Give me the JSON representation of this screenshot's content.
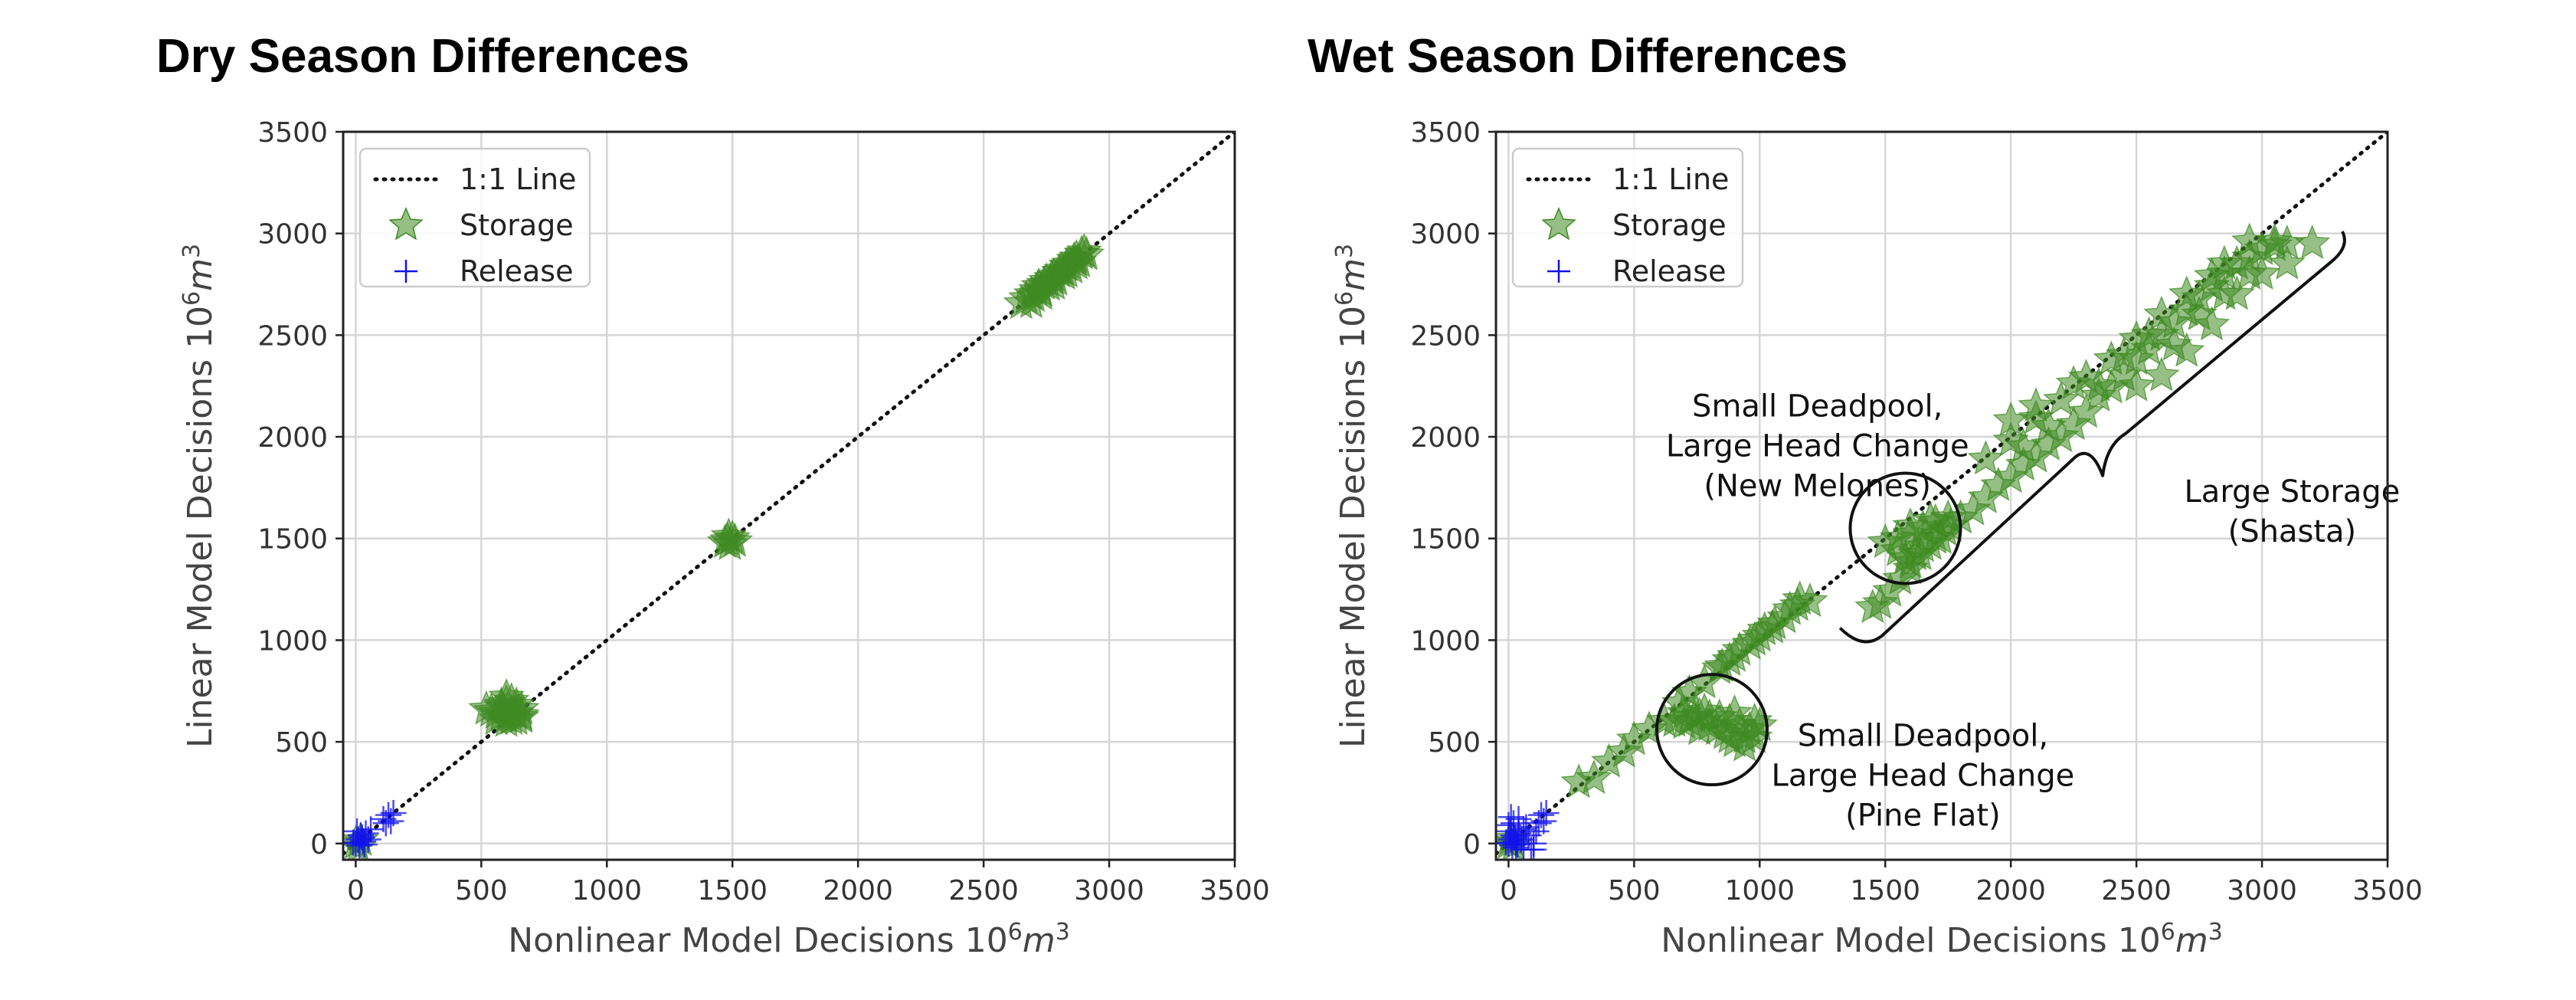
{
  "chart_data": [
    {
      "type": "scatter",
      "title": "Dry Season Differences",
      "xlabel": "Nonlinear Model Decisions",
      "ylabel": "Linear Model Decisions",
      "unit_base": "10",
      "unit_exp": "6",
      "unit_var": "m",
      "unit_pow": "3",
      "xlim": [
        -50,
        3500
      ],
      "ylim": [
        -80,
        3500
      ],
      "ticks": [
        0,
        500,
        1000,
        1500,
        2000,
        2500,
        3000,
        3500
      ],
      "grid": true,
      "legend": {
        "position": "top-left",
        "entries": [
          "1:1 Line",
          "Storage",
          "Release"
        ]
      },
      "series": [
        {
          "name": "Storage",
          "marker": "star",
          "color": "#3f8a22",
          "points": [
            [
              2650,
              2655
            ],
            [
              2670,
              2680
            ],
            [
              2690,
              2700
            ],
            [
              2700,
              2690
            ],
            [
              2710,
              2720
            ],
            [
              2720,
              2740
            ],
            [
              2730,
              2715
            ],
            [
              2740,
              2750
            ],
            [
              2750,
              2765
            ],
            [
              2760,
              2745
            ],
            [
              2770,
              2780
            ],
            [
              2780,
              2790
            ],
            [
              2790,
              2770
            ],
            [
              2800,
              2810
            ],
            [
              2810,
              2820
            ],
            [
              2820,
              2800
            ],
            [
              2830,
              2840
            ],
            [
              2840,
              2850
            ],
            [
              2850,
              2830
            ],
            [
              2860,
              2870
            ],
            [
              2870,
              2880
            ],
            [
              2880,
              2860
            ],
            [
              2890,
              2900
            ],
            [
              2900,
              2910
            ],
            [
              2910,
              2895
            ],
            [
              2690,
              2660
            ],
            [
              2730,
              2700
            ],
            [
              2780,
              2750
            ],
            [
              2830,
              2810
            ],
            [
              2870,
              2850
            ],
            [
              1480,
              1490
            ],
            [
              1490,
              1470
            ],
            [
              1500,
              1500
            ],
            [
              1470,
              1480
            ],
            [
              1510,
              1485
            ],
            [
              1485,
              1510
            ],
            [
              520,
              660
            ],
            [
              540,
              650
            ],
            [
              560,
              640
            ],
            [
              580,
              670
            ],
            [
              600,
              690
            ],
            [
              620,
              700
            ],
            [
              640,
              680
            ],
            [
              660,
              660
            ],
            [
              620,
              640
            ],
            [
              600,
              620
            ],
            [
              640,
              640
            ],
            [
              660,
              630
            ],
            [
              580,
              630
            ],
            [
              560,
              610
            ],
            [
              600,
              600
            ],
            [
              620,
              610
            ],
            [
              640,
              610
            ],
            [
              660,
              620
            ],
            [
              580,
              680
            ],
            [
              600,
              720
            ],
            [
              0,
              0
            ],
            [
              10,
              -20
            ],
            [
              20,
              15
            ]
          ]
        },
        {
          "name": "Release",
          "marker": "plus",
          "color": "#1010ee",
          "points": [
            [
              0,
              0
            ],
            [
              10,
              20
            ],
            [
              20,
              40
            ],
            [
              30,
              10
            ],
            [
              5,
              60
            ],
            [
              15,
              -10
            ],
            [
              40,
              50
            ],
            [
              50,
              20
            ],
            [
              25,
              30
            ],
            [
              60,
              70
            ],
            [
              -10,
              5
            ],
            [
              35,
              -5
            ],
            [
              110,
              120
            ],
            [
              130,
              140
            ],
            [
              140,
              110
            ],
            [
              150,
              150
            ],
            [
              120,
              100
            ]
          ]
        }
      ],
      "annotations": []
    },
    {
      "type": "scatter",
      "title": "Wet Season Differences",
      "xlabel": "Nonlinear Model Decisions",
      "ylabel": "Linear Model Decisions",
      "unit_base": "10",
      "unit_exp": "6",
      "unit_var": "m",
      "unit_pow": "3",
      "xlim": [
        -50,
        3500
      ],
      "ylim": [
        -80,
        3500
      ],
      "ticks": [
        0,
        500,
        1000,
        1500,
        2000,
        2500,
        3000,
        3500
      ],
      "grid": true,
      "legend": {
        "position": "top-left",
        "entries": [
          "1:1 Line",
          "Storage",
          "Release"
        ]
      },
      "series": [
        {
          "name": "Storage",
          "marker": "star",
          "color": "#3f8a22",
          "points": [
            [
              280,
              300
            ],
            [
              340,
              320
            ],
            [
              400,
              400
            ],
            [
              460,
              450
            ],
            [
              500,
              510
            ],
            [
              560,
              560
            ],
            [
              620,
              600
            ],
            [
              680,
              690
            ],
            [
              720,
              740
            ],
            [
              780,
              790
            ],
            [
              840,
              860
            ],
            [
              880,
              900
            ],
            [
              920,
              950
            ],
            [
              960,
              980
            ],
            [
              1000,
              1020
            ],
            [
              1050,
              1060
            ],
            [
              1100,
              1110
            ],
            [
              1150,
              1170
            ],
            [
              1200,
              1190
            ],
            [
              980,
              1000
            ],
            [
              1020,
              1050
            ],
            [
              1120,
              1150
            ],
            [
              900,
              920
            ],
            [
              850,
              870
            ],
            [
              1060,
              1080
            ],
            [
              1160,
              1200
            ],
            [
              660,
              600
            ],
            [
              700,
              590
            ],
            [
              740,
              620
            ],
            [
              780,
              650
            ],
            [
              800,
              580
            ],
            [
              830,
              560
            ],
            [
              860,
              540
            ],
            [
              880,
              600
            ],
            [
              900,
              640
            ],
            [
              920,
              580
            ],
            [
              940,
              520
            ],
            [
              960,
              560
            ],
            [
              980,
              600
            ],
            [
              760,
              560
            ],
            [
              720,
              600
            ],
            [
              840,
              620
            ],
            [
              900,
              500
            ],
            [
              940,
              480
            ],
            [
              880,
              520
            ],
            [
              800,
              620
            ],
            [
              760,
              630
            ],
            [
              700,
              640
            ],
            [
              1000,
              580
            ],
            [
              980,
              520
            ],
            [
              1480,
              1180
            ],
            [
              1520,
              1240
            ],
            [
              1560,
              1300
            ],
            [
              1600,
              1380
            ],
            [
              1640,
              1420
            ],
            [
              1680,
              1470
            ],
            [
              1720,
              1500
            ],
            [
              1760,
              1560
            ],
            [
              1800,
              1600
            ],
            [
              1850,
              1640
            ],
            [
              1900,
              1700
            ],
            [
              1950,
              1760
            ],
            [
              2000,
              1800
            ],
            [
              2050,
              1860
            ],
            [
              2100,
              1900
            ],
            [
              2150,
              1960
            ],
            [
              2200,
              2000
            ],
            [
              2250,
              2060
            ],
            [
              2300,
              2120
            ],
            [
              2350,
              2200
            ],
            [
              2400,
              2240
            ],
            [
              2450,
              2300
            ],
            [
              2500,
              2380
            ],
            [
              2550,
              2430
            ],
            [
              2600,
              2500
            ],
            [
              2650,
              2560
            ],
            [
              2700,
              2620
            ],
            [
              2750,
              2680
            ],
            [
              2800,
              2740
            ],
            [
              2850,
              2800
            ],
            [
              2900,
              2850
            ],
            [
              2950,
              2880
            ],
            [
              3000,
              2920
            ],
            [
              3050,
              2940
            ],
            [
              3100,
              2950
            ],
            [
              3200,
              2950
            ],
            [
              1550,
              1500
            ],
            [
              1600,
              1520
            ],
            [
              1650,
              1550
            ],
            [
              1700,
              1580
            ],
            [
              1750,
              1600
            ],
            [
              1600,
              1560
            ],
            [
              1650,
              1460
            ],
            [
              1700,
              1500
            ],
            [
              1550,
              1440
            ],
            [
              1500,
              1480
            ],
            [
              1580,
              1400
            ],
            [
              1620,
              1420
            ],
            [
              1680,
              1590
            ],
            [
              1740,
              1540
            ],
            [
              1450,
              1160
            ],
            [
              1600,
              1350
            ],
            [
              1900,
              1890
            ],
            [
              2000,
              1980
            ],
            [
              2100,
              2090
            ],
            [
              2200,
              2180
            ],
            [
              2300,
              2290
            ],
            [
              2400,
              2380
            ],
            [
              2500,
              2480
            ],
            [
              2600,
              2600
            ],
            [
              2700,
              2700
            ],
            [
              2800,
              2790
            ],
            [
              2850,
              2850
            ],
            [
              2950,
              2960
            ],
            [
              3050,
              2960
            ],
            [
              2000,
              2080
            ],
            [
              2100,
              2150
            ],
            [
              2250,
              2260
            ],
            [
              2350,
              2250
            ],
            [
              2500,
              2250
            ],
            [
              2600,
              2300
            ],
            [
              2700,
              2420
            ],
            [
              2800,
              2550
            ],
            [
              2900,
              2700
            ],
            [
              3000,
              2800
            ],
            [
              3100,
              2850
            ],
            [
              2050,
              1950
            ],
            [
              2150,
              2050
            ],
            [
              2450,
              2400
            ],
            [
              2550,
              2500
            ],
            [
              2650,
              2450
            ],
            [
              2750,
              2600
            ],
            [
              2850,
              2700
            ],
            [
              2950,
              2800
            ],
            [
              0,
              0
            ],
            [
              10,
              20
            ],
            [
              20,
              -10
            ]
          ]
        },
        {
          "name": "Release",
          "marker": "plus",
          "color": "#1010ee",
          "points": [
            [
              0,
              0
            ],
            [
              10,
              20
            ],
            [
              20,
              40
            ],
            [
              30,
              10
            ],
            [
              5,
              60
            ],
            [
              15,
              -10
            ],
            [
              40,
              50
            ],
            [
              50,
              20
            ],
            [
              25,
              30
            ],
            [
              60,
              70
            ],
            [
              -10,
              5
            ],
            [
              35,
              -5
            ],
            [
              0,
              90
            ],
            [
              10,
              130
            ],
            [
              20,
              100
            ],
            [
              30,
              -20
            ],
            [
              70,
              80
            ],
            [
              80,
              40
            ],
            [
              90,
              -30
            ],
            [
              100,
              0
            ],
            [
              110,
              60
            ],
            [
              120,
              100
            ],
            [
              130,
              140
            ],
            [
              140,
              110
            ],
            [
              150,
              150
            ],
            [
              100,
              -30
            ],
            [
              60,
              -30
            ],
            [
              40,
              120
            ]
          ]
        }
      ],
      "annotations": [
        {
          "id": "new-melones",
          "lines": [
            "Small Deadpool,",
            "Large Head Change",
            "(New Melones)"
          ]
        },
        {
          "id": "pine-flat",
          "lines": [
            "Small Deadpool,",
            "Large Head Change",
            "(Pine Flat)"
          ]
        },
        {
          "id": "shasta",
          "lines": [
            "Large Storage",
            "(Shasta)"
          ]
        }
      ]
    }
  ]
}
